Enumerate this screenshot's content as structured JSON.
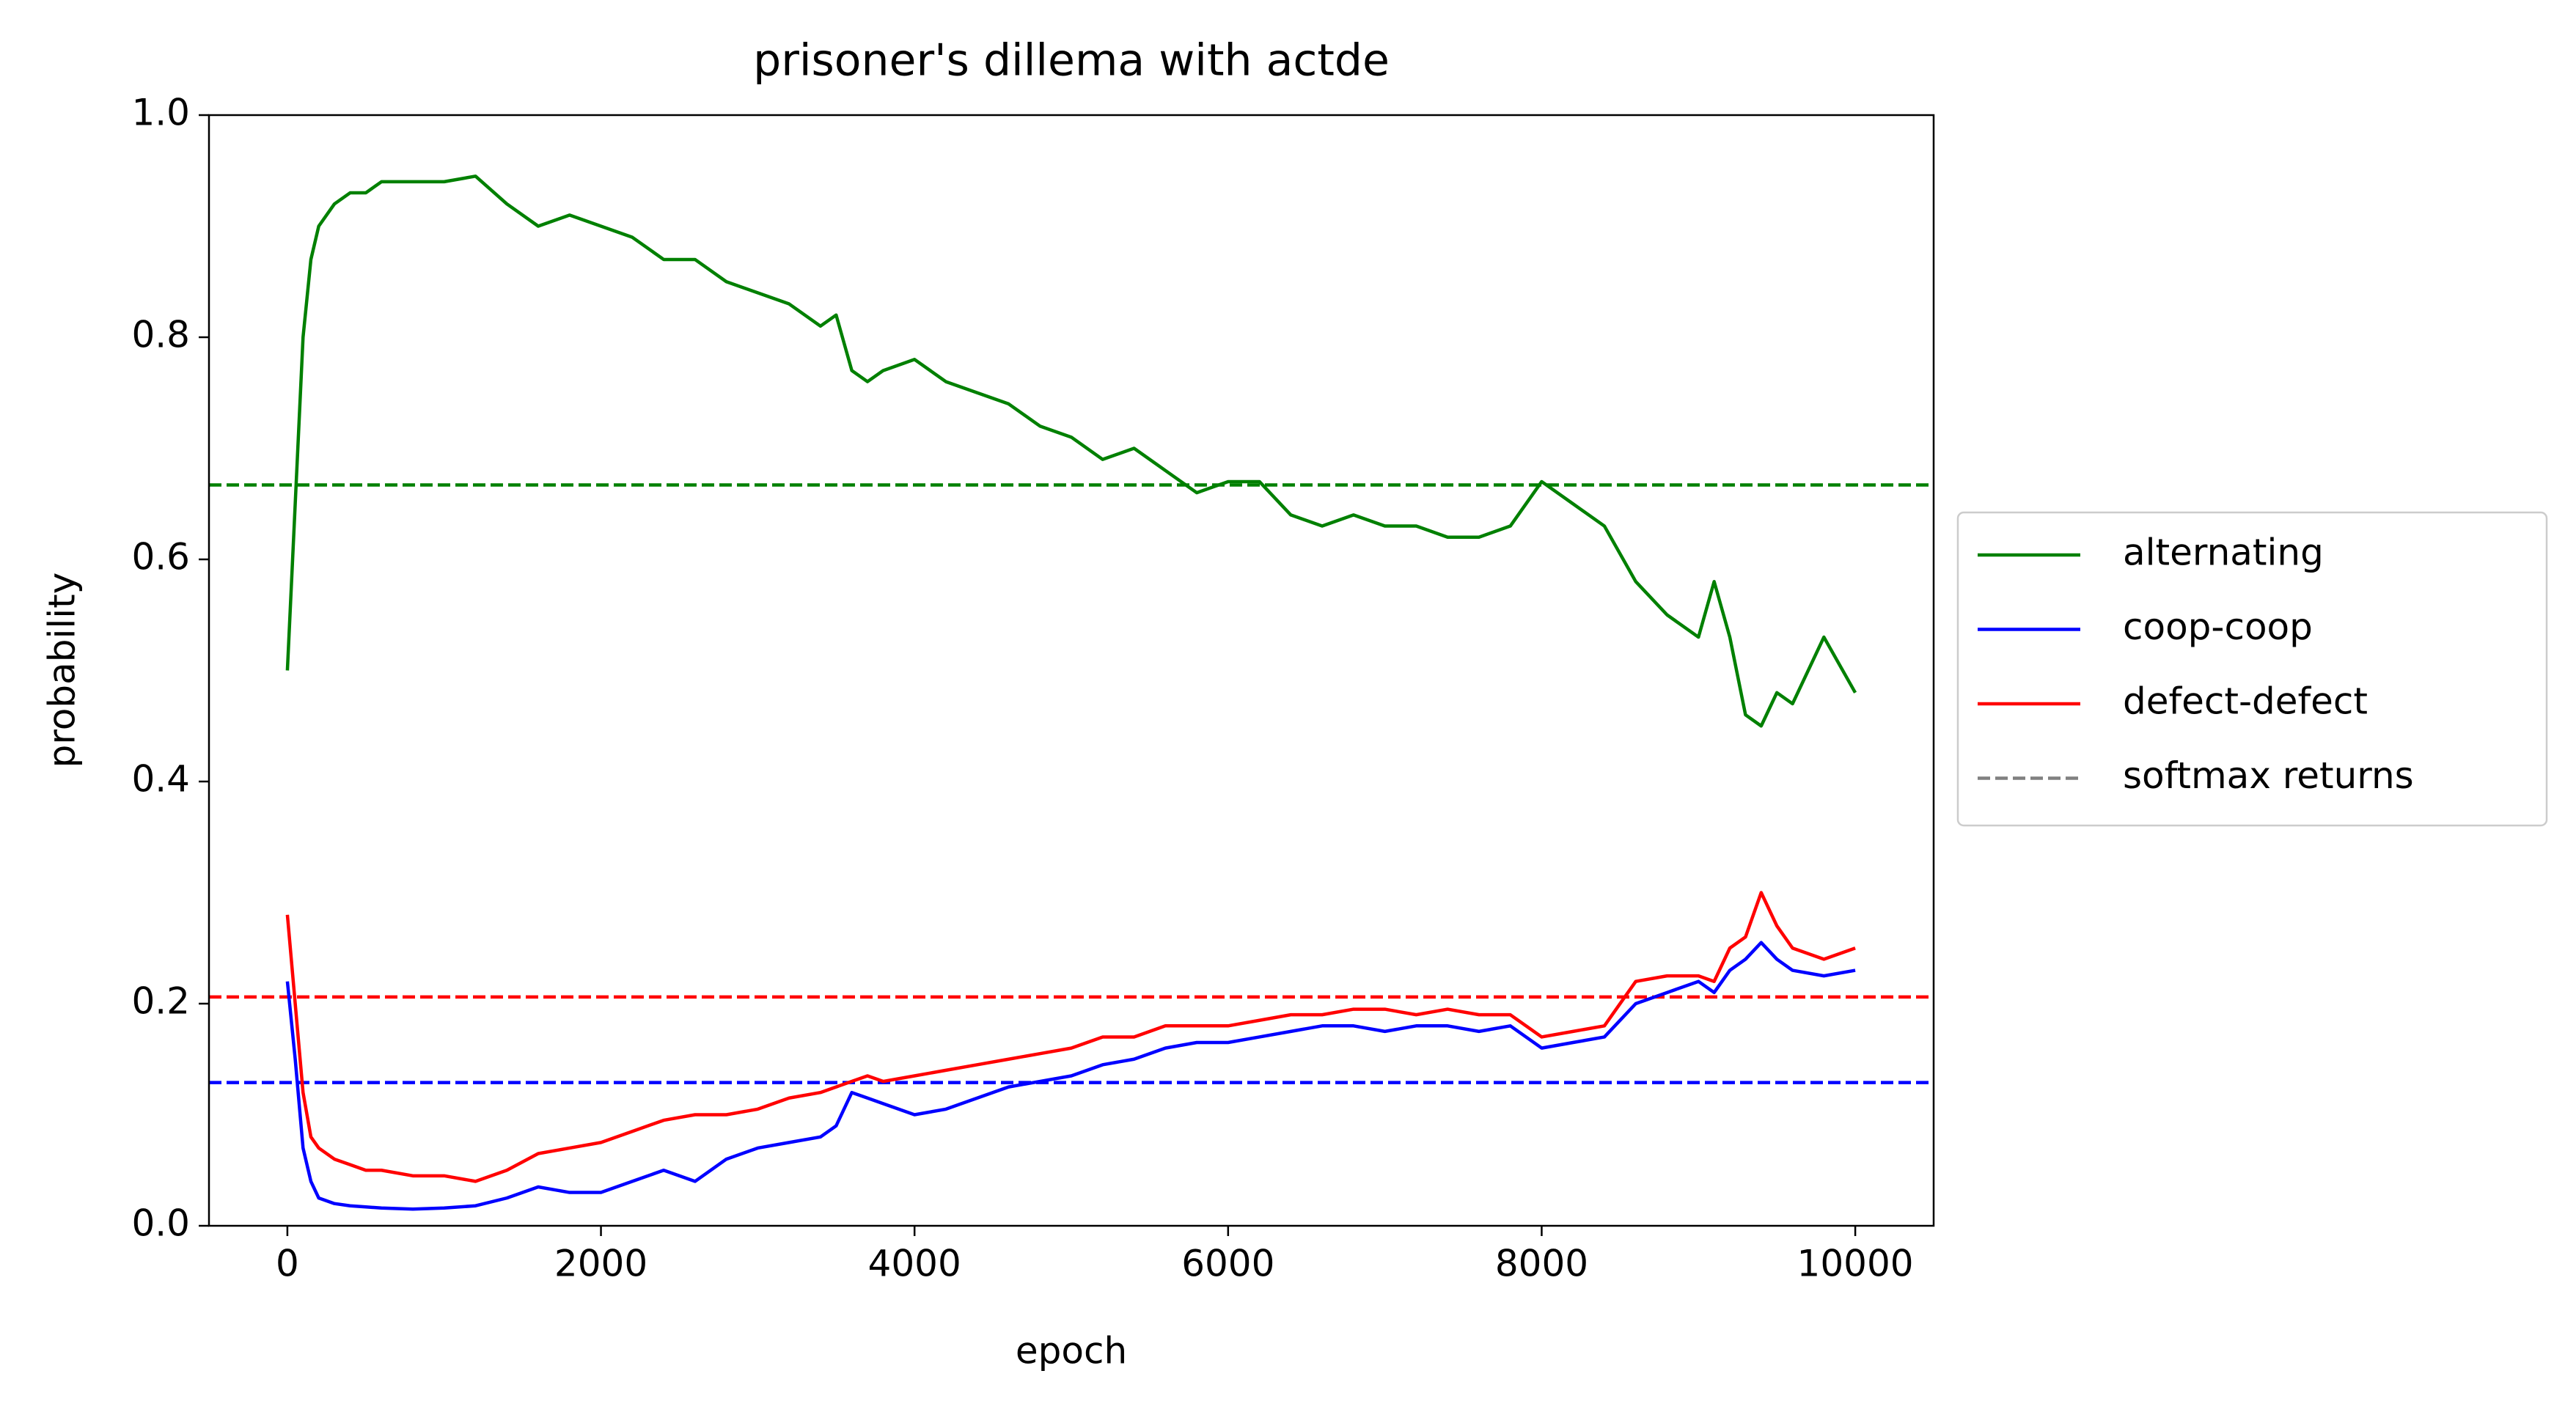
{
  "chart_data": {
    "type": "line",
    "title": "prisoner's dillema with actde",
    "xlabel": "epoch",
    "ylabel": "probability",
    "x": [
      0,
      50,
      100,
      150,
      200,
      300,
      400,
      500,
      600,
      800,
      1000,
      1200,
      1400,
      1600,
      1800,
      2000,
      2200,
      2400,
      2600,
      2800,
      3000,
      3200,
      3400,
      3500,
      3600,
      3700,
      3800,
      4000,
      4200,
      4400,
      4600,
      4800,
      5000,
      5200,
      5400,
      5600,
      5800,
      6000,
      6200,
      6400,
      6600,
      6800,
      7000,
      7200,
      7400,
      7600,
      7800,
      8000,
      8200,
      8400,
      8600,
      8800,
      9000,
      9100,
      9200,
      9300,
      9400,
      9500,
      9600,
      9800,
      10000
    ],
    "series": [
      {
        "name": "alternating",
        "color": "green",
        "values": [
          0.5,
          0.65,
          0.8,
          0.87,
          0.9,
          0.92,
          0.93,
          0.93,
          0.94,
          0.94,
          0.94,
          0.945,
          0.92,
          0.9,
          0.91,
          0.9,
          0.89,
          0.87,
          0.87,
          0.85,
          0.84,
          0.83,
          0.81,
          0.82,
          0.77,
          0.76,
          0.77,
          0.78,
          0.76,
          0.75,
          0.74,
          0.72,
          0.71,
          0.69,
          0.7,
          0.68,
          0.66,
          0.67,
          0.67,
          0.64,
          0.63,
          0.64,
          0.63,
          0.63,
          0.62,
          0.62,
          0.63,
          0.67,
          0.65,
          0.63,
          0.58,
          0.55,
          0.53,
          0.58,
          0.53,
          0.46,
          0.45,
          0.48,
          0.47,
          0.53,
          0.48
        ]
      },
      {
        "name": "coop-coop",
        "color": "blue",
        "values": [
          0.22,
          0.15,
          0.07,
          0.04,
          0.025,
          0.02,
          0.018,
          0.017,
          0.016,
          0.015,
          0.016,
          0.018,
          0.025,
          0.035,
          0.03,
          0.03,
          0.04,
          0.05,
          0.04,
          0.06,
          0.07,
          0.075,
          0.08,
          0.09,
          0.12,
          0.115,
          0.11,
          0.1,
          0.105,
          0.115,
          0.125,
          0.13,
          0.135,
          0.145,
          0.15,
          0.16,
          0.165,
          0.165,
          0.17,
          0.175,
          0.18,
          0.18,
          0.175,
          0.18,
          0.18,
          0.175,
          0.18,
          0.16,
          0.165,
          0.17,
          0.2,
          0.21,
          0.22,
          0.21,
          0.23,
          0.24,
          0.255,
          0.24,
          0.23,
          0.225,
          0.23
        ]
      },
      {
        "name": "defect-defect",
        "color": "red",
        "values": [
          0.28,
          0.2,
          0.12,
          0.08,
          0.07,
          0.06,
          0.055,
          0.05,
          0.05,
          0.045,
          0.045,
          0.04,
          0.05,
          0.065,
          0.07,
          0.075,
          0.085,
          0.095,
          0.1,
          0.1,
          0.105,
          0.115,
          0.12,
          0.125,
          0.13,
          0.135,
          0.13,
          0.135,
          0.14,
          0.145,
          0.15,
          0.155,
          0.16,
          0.17,
          0.17,
          0.18,
          0.18,
          0.18,
          0.185,
          0.19,
          0.19,
          0.195,
          0.195,
          0.19,
          0.195,
          0.19,
          0.19,
          0.17,
          0.175,
          0.18,
          0.22,
          0.225,
          0.225,
          0.22,
          0.25,
          0.26,
          0.3,
          0.27,
          0.25,
          0.24,
          0.25
        ]
      }
    ],
    "hlines": [
      {
        "value": 0.667,
        "color": "green"
      },
      {
        "value": 0.206,
        "color": "red"
      },
      {
        "value": 0.129,
        "color": "blue"
      }
    ],
    "legend_extra": {
      "name": "softmax returns",
      "color": "gray"
    },
    "legend": "right",
    "xlim": [
      -500,
      10500
    ],
    "xticks": [
      0,
      2000,
      4000,
      6000,
      8000,
      10000
    ],
    "ylim": [
      0,
      1
    ],
    "yticks": [
      {
        "value": 0,
        "label": "0.0"
      },
      {
        "value": 0.2,
        "label": "0.2"
      },
      {
        "value": 0.4,
        "label": "0.4"
      },
      {
        "value": 0.6,
        "label": "0.6"
      },
      {
        "value": 0.8,
        "label": "0.8"
      },
      {
        "value": 1,
        "label": "1.0"
      }
    ]
  }
}
